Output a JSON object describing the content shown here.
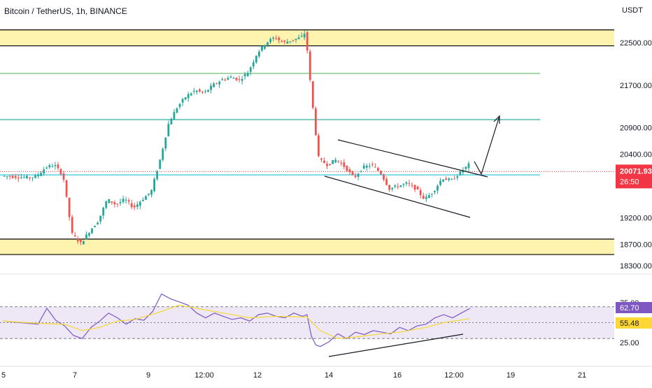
{
  "header": {
    "title": "Bitcoin / TetherUS, 1h, BINANCE",
    "currency": "USDT"
  },
  "colors": {
    "up": "#26a69a",
    "down": "#ef5350",
    "zone_fill": "#fff3b0",
    "zone_line": "#000000",
    "level_green": "#4caf50",
    "level_teal": "#009688",
    "current_line": "#00bcd4",
    "last_price_bg": "#f23645",
    "rsi_line": "#7e57c2",
    "rsi_ma": "#f5d833",
    "rsi_band": "#ede7f6",
    "ma_label_bg": "#fdd835",
    "rsi_label_bg": "#7e57c2"
  },
  "chart_data": [
    {
      "type": "candlestick",
      "title": "Bitcoin / TetherUS, 1h, BINANCE",
      "y_axis_unit": "USDT",
      "y_ticks": [
        "22500.00",
        "21700.00",
        "20900.00",
        "20400.00",
        "19200.00",
        "18700.00",
        "18300.00"
      ],
      "y_tick_values": [
        22500,
        21700,
        20900,
        20400,
        19200,
        18700,
        18300
      ],
      "x_ticks": [
        "5",
        "7",
        "9",
        "12:00",
        "12",
        "14",
        "16",
        "12:00",
        "19",
        "21"
      ],
      "last_price": "20071.93",
      "countdown": "26:50",
      "support_zone": [
        18510,
        18800
      ],
      "resistance_zone": [
        22440,
        22740
      ],
      "horizontal_levels": [
        21920,
        21050,
        20010
      ],
      "price_path": [
        [
          0,
          19990
        ],
        [
          6,
          19960
        ],
        [
          8,
          19980
        ],
        [
          10,
          20150
        ],
        [
          12,
          20200
        ],
        [
          14,
          20000
        ],
        [
          16,
          18900
        ],
        [
          18,
          18720
        ],
        [
          20,
          18950
        ],
        [
          22,
          19150
        ],
        [
          24,
          19550
        ],
        [
          26,
          19450
        ],
        [
          28,
          19550
        ],
        [
          30,
          19390
        ],
        [
          32,
          19550
        ],
        [
          34,
          19700
        ],
        [
          36,
          20300
        ],
        [
          38,
          21000
        ],
        [
          40,
          21300
        ],
        [
          42,
          21500
        ],
        [
          44,
          21600
        ],
        [
          46,
          21550
        ],
        [
          48,
          21700
        ],
        [
          50,
          21800
        ],
        [
          52,
          21850
        ],
        [
          54,
          21800
        ],
        [
          56,
          21950
        ],
        [
          58,
          22300
        ],
        [
          60,
          22500
        ],
        [
          62,
          22600
        ],
        [
          64,
          22500
        ],
        [
          66,
          22550
        ],
        [
          68,
          22600
        ],
        [
          69,
          22700
        ],
        [
          70,
          21800
        ],
        [
          71,
          21000
        ],
        [
          72,
          20300
        ],
        [
          74,
          20200
        ],
        [
          76,
          20300
        ],
        [
          78,
          20150
        ],
        [
          80,
          19950
        ],
        [
          82,
          20150
        ],
        [
          84,
          20200
        ],
        [
          86,
          20050
        ],
        [
          88,
          19750
        ],
        [
          90,
          19800
        ],
        [
          92,
          19850
        ],
        [
          94,
          19750
        ],
        [
          96,
          19550
        ],
        [
          98,
          19700
        ],
        [
          100,
          19950
        ],
        [
          102,
          19900
        ],
        [
          104,
          20050
        ],
        [
          106,
          20200
        ]
      ]
    },
    {
      "type": "line",
      "name": "RSI",
      "y_ticks": [
        "75.00",
        "25.00"
      ],
      "y_tick_values": [
        75,
        25
      ],
      "bands": [
        70,
        50,
        30
      ],
      "rsi_value": "62.70",
      "ma_value": "55.48",
      "rsi_path": [
        [
          0,
          52
        ],
        [
          4,
          50
        ],
        [
          8,
          48
        ],
        [
          10,
          68
        ],
        [
          12,
          53
        ],
        [
          14,
          46
        ],
        [
          16,
          34
        ],
        [
          18,
          30
        ],
        [
          20,
          44
        ],
        [
          22,
          52
        ],
        [
          24,
          62
        ],
        [
          26,
          56
        ],
        [
          28,
          48
        ],
        [
          30,
          55
        ],
        [
          32,
          53
        ],
        [
          34,
          64
        ],
        [
          36,
          86
        ],
        [
          38,
          80
        ],
        [
          40,
          76
        ],
        [
          42,
          72
        ],
        [
          44,
          62
        ],
        [
          46,
          56
        ],
        [
          48,
          62
        ],
        [
          50,
          58
        ],
        [
          52,
          54
        ],
        [
          54,
          56
        ],
        [
          56,
          52
        ],
        [
          58,
          60
        ],
        [
          60,
          62
        ],
        [
          62,
          58
        ],
        [
          64,
          56
        ],
        [
          66,
          62
        ],
        [
          68,
          58
        ],
        [
          69,
          60
        ],
        [
          70,
          33
        ],
        [
          71,
          22
        ],
        [
          72,
          20
        ],
        [
          74,
          26
        ],
        [
          76,
          36
        ],
        [
          78,
          30
        ],
        [
          80,
          38
        ],
        [
          82,
          35
        ],
        [
          84,
          40
        ],
        [
          86,
          38
        ],
        [
          88,
          36
        ],
        [
          90,
          44
        ],
        [
          92,
          40
        ],
        [
          94,
          46
        ],
        [
          96,
          48
        ],
        [
          98,
          56
        ],
        [
          100,
          60
        ],
        [
          102,
          56
        ],
        [
          104,
          62
        ],
        [
          106,
          68
        ]
      ],
      "ma_path": [
        [
          0,
          52
        ],
        [
          8,
          49
        ],
        [
          14,
          48
        ],
        [
          18,
          40
        ],
        [
          22,
          44
        ],
        [
          26,
          52
        ],
        [
          30,
          54
        ],
        [
          36,
          64
        ],
        [
          40,
          72
        ],
        [
          44,
          68
        ],
        [
          50,
          62
        ],
        [
          56,
          56
        ],
        [
          62,
          58
        ],
        [
          69,
          57
        ],
        [
          72,
          40
        ],
        [
          76,
          30
        ],
        [
          80,
          32
        ],
        [
          86,
          36
        ],
        [
          90,
          38
        ],
        [
          96,
          44
        ],
        [
          100,
          50
        ],
        [
          106,
          55
        ]
      ]
    }
  ]
}
